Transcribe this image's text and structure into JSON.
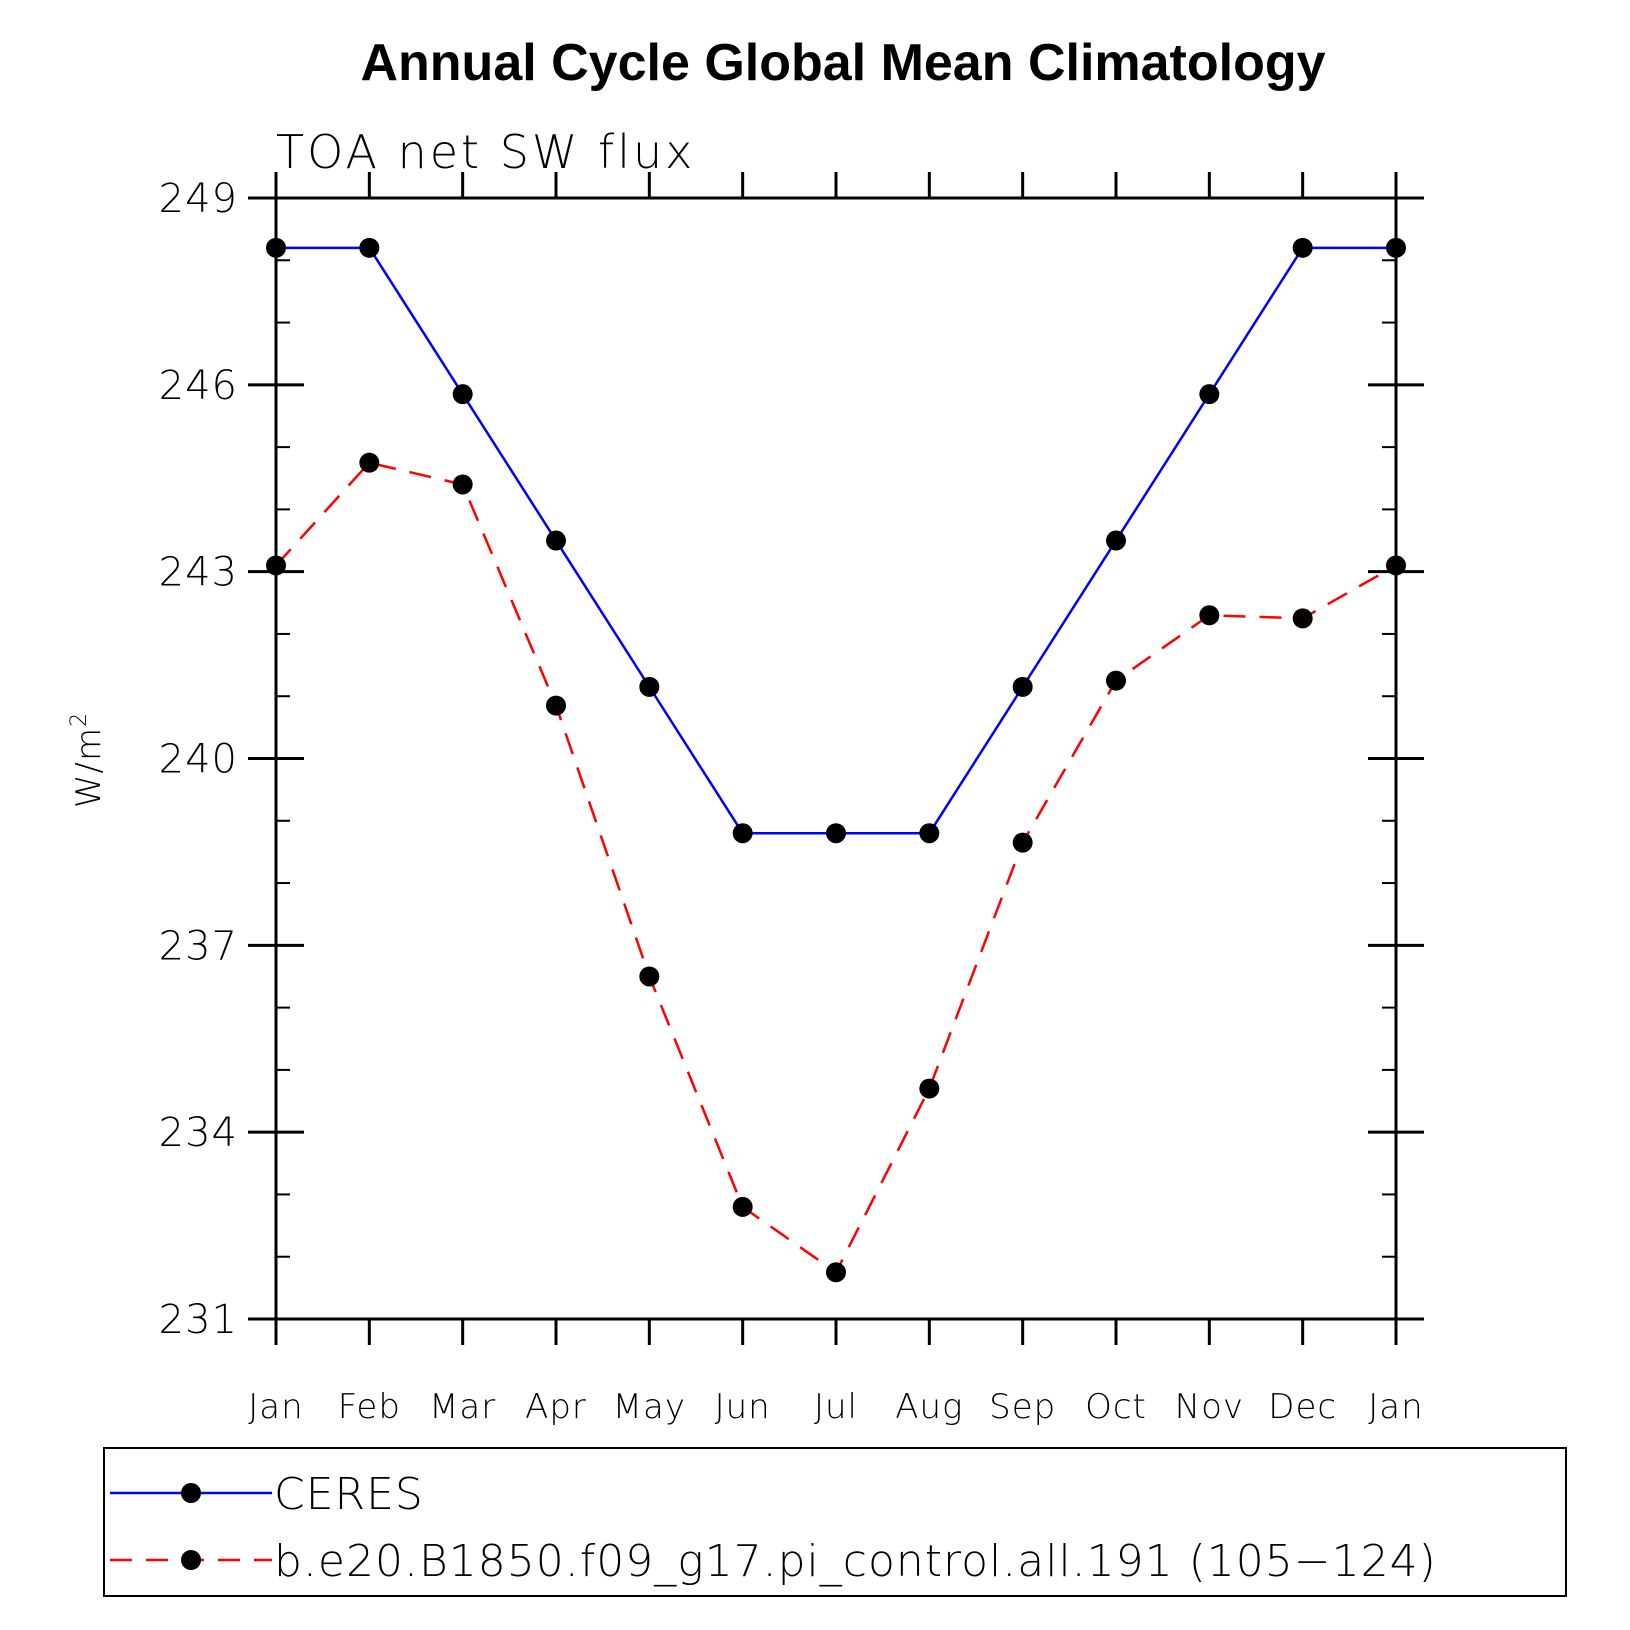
{
  "chart_data": {
    "type": "line",
    "title": "Annual Cycle Global Mean Climatology",
    "subtitle": "TOA net SW flux",
    "xlabel": "",
    "ylabel": "W/m",
    "ylabel_superscript": "2",
    "categories": [
      "Jan",
      "Feb",
      "Mar",
      "Apr",
      "May",
      "Jun",
      "Jul",
      "Aug",
      "Sep",
      "Oct",
      "Nov",
      "Dec",
      "Jan"
    ],
    "ylim": [
      231,
      249
    ],
    "yticks": [
      231,
      234,
      237,
      240,
      243,
      246,
      249
    ],
    "grid": false,
    "legend_position": "bottom",
    "series": [
      {
        "name": "CERES",
        "color": "#0000ff",
        "line_style": "solid",
        "marker": "filled-circle",
        "values": [
          248.2,
          248.2,
          245.85,
          243.5,
          241.15,
          238.8,
          238.8,
          238.8,
          241.15,
          243.5,
          245.85,
          248.2,
          248.2
        ]
      },
      {
        "name": "b.e20.B1850.f09_g17.pi_control.all.191 (105−124)",
        "color": "#ff0000",
        "line_style": "dashed",
        "marker": "filled-circle",
        "values": [
          243.1,
          244.75,
          244.4,
          240.85,
          236.5,
          232.8,
          231.75,
          234.7,
          238.65,
          241.25,
          242.3,
          242.25,
          243.1
        ]
      }
    ],
    "marker_color": "#000000"
  }
}
